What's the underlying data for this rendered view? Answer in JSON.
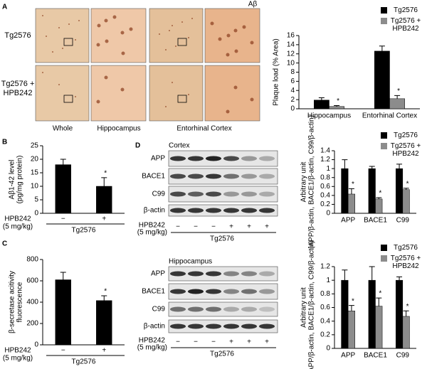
{
  "chart_data": [
    {
      "type": "bar",
      "ylabel": [
        "Plaque load (% Area)"
      ],
      "categories": [
        "Hippocampus",
        "Entorhinal Cortex"
      ],
      "series": [
        {
          "name": "Tg2576",
          "color": "#000000",
          "values": [
            1.9,
            12.6
          ],
          "errors": [
            0.5,
            1.1
          ]
        },
        {
          "name": "Tg2576 + HPB242",
          "color": "#8c8c8c",
          "values": [
            0.5,
            2.2
          ],
          "errors": [
            0.2,
            0.7
          ],
          "annotation": "*"
        }
      ],
      "ylim": [
        0,
        16
      ],
      "yticks": [
        0,
        2,
        4,
        6,
        8,
        10,
        12,
        14,
        16
      ],
      "legend": "upper right"
    },
    {
      "type": "bar",
      "ylabel": [
        "Aβ1-42 level",
        "(pg/mg protein)"
      ],
      "categories": [
        "−",
        "+"
      ],
      "values": [
        18,
        10
      ],
      "errors": [
        2,
        3.2
      ],
      "color": "#000000",
      "annotations": [
        null,
        "*"
      ],
      "x_row_label": [
        "HPB242",
        "(5 mg/kg)"
      ],
      "x_group_label": "Tg2576",
      "ylim": [
        0,
        25
      ],
      "yticks": [
        0,
        5,
        10,
        15,
        20,
        25
      ]
    },
    {
      "type": "bar",
      "ylabel": [
        "β-secretase acitivity",
        "fluorescence"
      ],
      "categories": [
        "−",
        "+"
      ],
      "values": [
        610,
        415
      ],
      "errors": [
        70,
        45
      ],
      "color": "#000000",
      "annotations": [
        null,
        "*"
      ],
      "x_row_label": [
        "HPB242",
        "(5 mg/kg)"
      ],
      "x_group_label": "Tg2576",
      "ylim": [
        0,
        800
      ],
      "yticks": [
        0,
        200,
        400,
        600,
        800
      ]
    },
    {
      "type": "bar",
      "ylabel": [
        "Arbitrary unit",
        "(APP/β-actin, BACE1/β-actin, C99/β-actin)"
      ],
      "categories": [
        "APP",
        "BACE1",
        "C99"
      ],
      "series": [
        {
          "name": "Tg2576",
          "color": "#000000",
          "values": [
            1.0,
            1.0,
            1.0
          ],
          "errors": [
            0.2,
            0.05,
            0.1
          ]
        },
        {
          "name": "Tg2576 + HPB242",
          "color": "#8c8c8c",
          "values": [
            0.43,
            0.32,
            0.53
          ],
          "errors": [
            0.12,
            0.03,
            0.03
          ],
          "annotation": "*"
        }
      ],
      "ylim": [
        0,
        1.4
      ],
      "yticks": [
        0,
        0.2,
        0.4,
        0.6,
        0.8,
        1,
        1.2,
        1.4
      ],
      "legend": "upper right"
    },
    {
      "type": "bar",
      "ylabel": [
        "Arbitrary unit",
        "(APP/β-actin, BACE1/β-actin, C99/β-actin)"
      ],
      "categories": [
        "APP",
        "BACE1",
        "C99"
      ],
      "series": [
        {
          "name": "Tg2576",
          "color": "#000000",
          "values": [
            1.0,
            1.0,
            1.0
          ],
          "errors": [
            0.15,
            0.2,
            0.05
          ]
        },
        {
          "name": "Tg2576 + HPB242",
          "color": "#8c8c8c",
          "values": [
            0.55,
            0.62,
            0.47
          ],
          "errors": [
            0.08,
            0.12,
            0.08
          ],
          "annotation": "*"
        }
      ],
      "ylim": [
        0,
        1.2
      ],
      "yticks": [
        0,
        0.2,
        0.4,
        0.6,
        0.8,
        1,
        1.2
      ],
      "legend": "upper right"
    }
  ],
  "figure": {
    "panel_labels": [
      "A",
      "B",
      "C",
      "D"
    ],
    "micrographs": {
      "marker": "Aβ",
      "rows": [
        "Tg2576",
        "Tg2576 + HPB242"
      ],
      "columns": [
        "Whole",
        "Hippocampus",
        "Entorhinal Cortex"
      ]
    },
    "blots": [
      {
        "region": "Cortex",
        "rows": [
          "APP",
          "BACE1",
          "C99",
          "β-actin"
        ],
        "treatment": [
          "HPB242",
          "(5 mg/kg)"
        ],
        "signs": [
          "−",
          "−",
          "−",
          "+",
          "+",
          "+"
        ],
        "group": "Tg2576"
      },
      {
        "region": "Hippocampus",
        "rows": [
          "APP",
          "BACE1",
          "C99",
          "β-actin"
        ],
        "treatment": [
          "HPB242",
          "(5 mg/kg)"
        ],
        "signs": [
          "−",
          "−",
          "−",
          "+",
          "+",
          "+"
        ],
        "group": "Tg2576"
      }
    ]
  }
}
